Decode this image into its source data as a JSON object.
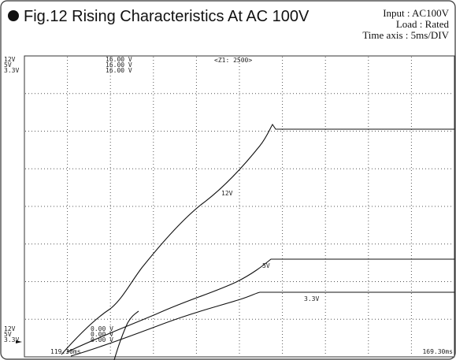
{
  "header": {
    "title": "Fig.12  Rising Characteristics At AC 100V",
    "conditions": [
      "Input : AC100V",
      "Load : Rated",
      "Time axis : 5ms/DIV"
    ]
  },
  "scope": {
    "top_channels": [
      "12V",
      "5V",
      "3.3V"
    ],
    "top_scales": [
      "16.00 V",
      "16.00 V",
      "16.00 V"
    ],
    "zoom": "<Z1: 2500>",
    "bottom_channels": [
      "12V",
      "5V",
      "3.3V"
    ],
    "bottom_offsets": [
      "0.00 V",
      "0.00 V",
      "0.00 V"
    ],
    "time_start": "119.30ms",
    "time_end": "169.30ms",
    "trace_labels": [
      "12V",
      "5V",
      "3.3V"
    ]
  }
}
